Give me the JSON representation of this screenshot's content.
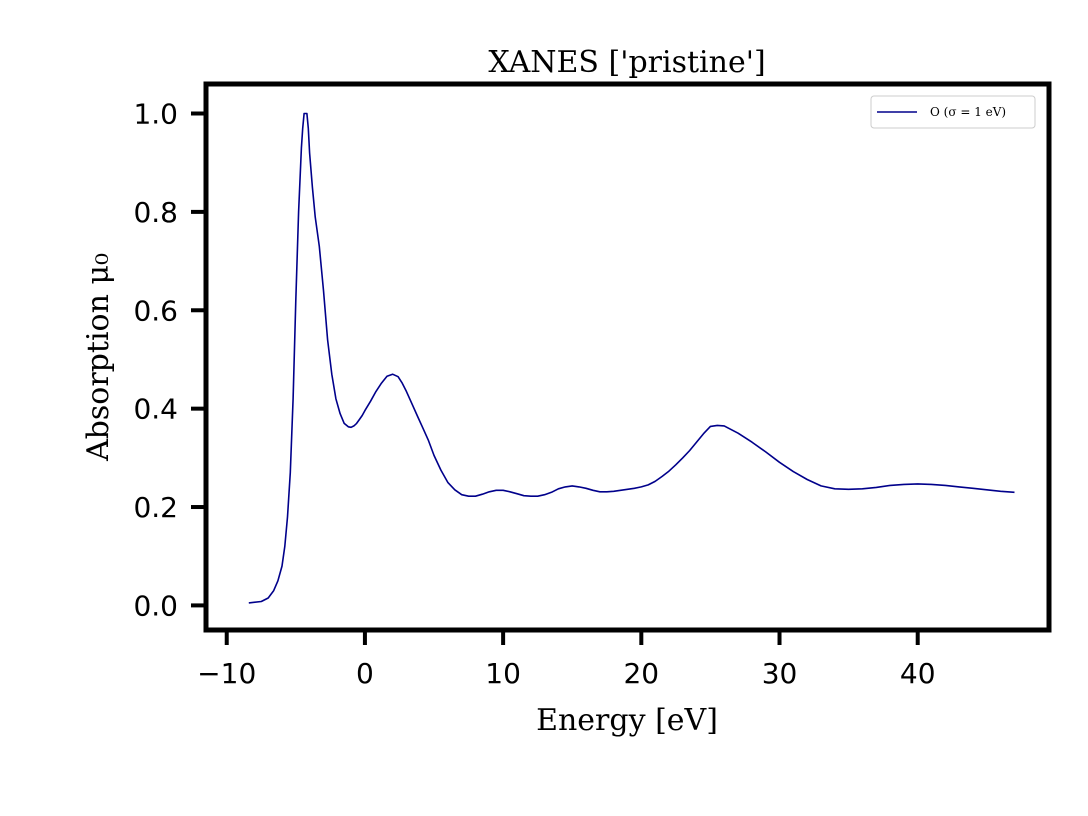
{
  "chart_data": {
    "type": "line",
    "title": "XANES ['pristine']",
    "xlabel": "Energy [eV]",
    "ylabel": "Absorption μ₀",
    "xlim": [
      -11.5,
      49.5
    ],
    "ylim": [
      -0.05,
      1.06
    ],
    "xticks": [
      -10,
      0,
      10,
      20,
      30,
      40
    ],
    "xtick_labels": [
      "−10",
      "0",
      "10",
      "20",
      "30",
      "40"
    ],
    "yticks": [
      0.0,
      0.2,
      0.4,
      0.6,
      0.8,
      1.0
    ],
    "ytick_labels": [
      "0.0",
      "0.2",
      "0.4",
      "0.6",
      "0.8",
      "1.0"
    ],
    "grid": false,
    "legend_position": "top-right",
    "series": [
      {
        "name": "O (σ = 1 eV)",
        "color": "#00008b",
        "x": [
          -8.4,
          -7.5,
          -7.0,
          -6.6,
          -6.3,
          -6.0,
          -5.8,
          -5.6,
          -5.4,
          -5.2,
          -5.0,
          -4.8,
          -4.6,
          -4.5,
          -4.4,
          -4.3,
          -4.2,
          -4.1,
          -4.0,
          -3.8,
          -3.6,
          -3.3,
          -3.0,
          -2.7,
          -2.4,
          -2.1,
          -1.8,
          -1.5,
          -1.2,
          -1.0,
          -0.8,
          -0.6,
          -0.4,
          -0.2,
          0.0,
          0.4,
          0.8,
          1.2,
          1.6,
          2.0,
          2.4,
          2.7,
          3.0,
          3.4,
          3.8,
          4.2,
          4.6,
          5.0,
          5.5,
          6.0,
          6.5,
          7.0,
          7.5,
          8.0,
          8.5,
          9.0,
          9.5,
          10.0,
          10.5,
          11.0,
          11.5,
          12.0,
          12.5,
          13.0,
          13.5,
          14.0,
          14.5,
          15.0,
          15.5,
          16.0,
          16.5,
          17.0,
          17.5,
          18.0,
          18.5,
          19.0,
          19.5,
          20.0,
          20.5,
          21.0,
          21.5,
          22.0,
          22.5,
          23.0,
          23.5,
          24.0,
          24.5,
          25.0,
          25.5,
          26.0,
          27.0,
          28.0,
          29.0,
          30.0,
          31.0,
          32.0,
          33.0,
          34.0,
          35.0,
          36.0,
          37.0,
          38.0,
          39.0,
          40.0,
          41.0,
          42.0,
          43.0,
          44.0,
          45.0,
          46.0,
          47.0
        ],
        "y": [
          0.005,
          0.008,
          0.015,
          0.03,
          0.05,
          0.08,
          0.12,
          0.18,
          0.27,
          0.42,
          0.62,
          0.8,
          0.93,
          0.97,
          1.0,
          1.0,
          1.0,
          0.97,
          0.92,
          0.85,
          0.79,
          0.73,
          0.64,
          0.54,
          0.47,
          0.42,
          0.39,
          0.37,
          0.363,
          0.362,
          0.365,
          0.37,
          0.378,
          0.386,
          0.396,
          0.415,
          0.435,
          0.452,
          0.466,
          0.47,
          0.465,
          0.452,
          0.435,
          0.41,
          0.385,
          0.36,
          0.335,
          0.305,
          0.275,
          0.25,
          0.235,
          0.225,
          0.222,
          0.222,
          0.226,
          0.231,
          0.234,
          0.234,
          0.231,
          0.227,
          0.223,
          0.222,
          0.222,
          0.225,
          0.23,
          0.237,
          0.241,
          0.243,
          0.241,
          0.238,
          0.234,
          0.231,
          0.231,
          0.232,
          0.234,
          0.236,
          0.238,
          0.241,
          0.245,
          0.252,
          0.262,
          0.273,
          0.286,
          0.3,
          0.315,
          0.332,
          0.349,
          0.364,
          0.366,
          0.365,
          0.35,
          0.332,
          0.312,
          0.291,
          0.272,
          0.256,
          0.243,
          0.237,
          0.236,
          0.237,
          0.24,
          0.244,
          0.246,
          0.247,
          0.246,
          0.244,
          0.241,
          0.238,
          0.235,
          0.232,
          0.23
        ]
      }
    ]
  }
}
